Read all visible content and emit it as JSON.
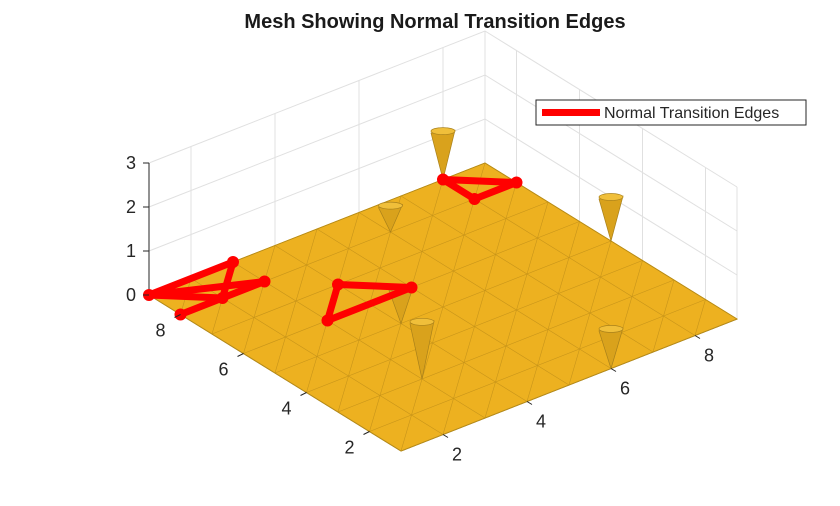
{
  "chart_data": {
    "type": "surface",
    "title": "Mesh Showing Normal Transition Edges",
    "xlabel": "",
    "ylabel": "",
    "zlabel": "",
    "xlim": [
      1,
      9
    ],
    "ylim": [
      1,
      9
    ],
    "zlim": [
      0,
      3
    ],
    "x_ticks": [
      2,
      4,
      6,
      8
    ],
    "y_ticks": [
      2,
      4,
      6,
      8
    ],
    "z_ticks": [
      0,
      1,
      2,
      3
    ],
    "grid": true,
    "legend_position": "top-right",
    "surface_color": "#EDB120",
    "mesh_edge_color": "#c8951a",
    "spikes": [
      {
        "x": 3,
        "y": 3,
        "z": 1.3
      },
      {
        "x": 4,
        "y": 5,
        "z": 0.8
      },
      {
        "x": 8,
        "y": 9,
        "z": 1.1
      },
      {
        "x": 6,
        "y": 8,
        "z": 0.6
      },
      {
        "x": 9,
        "y": 5,
        "z": 1.0
      },
      {
        "x": 6,
        "y": 1,
        "z": 0.9
      }
    ],
    "series": [
      {
        "name": "Normal Transition Edges",
        "color": "#ff0000",
        "segments": [
          [
            [
              1,
              8
            ],
            [
              2,
              8
            ]
          ],
          [
            [
              2,
              8
            ],
            [
              1,
              9
            ]
          ],
          [
            [
              1,
              9
            ],
            [
              3,
              8
            ]
          ],
          [
            [
              3,
              8
            ],
            [
              2,
              8
            ]
          ],
          [
            [
              2,
              8
            ],
            [
              3,
              9
            ]
          ],
          [
            [
              1,
              9
            ],
            [
              3,
              9
            ]
          ],
          [
            [
              3,
              6
            ],
            [
              4,
              7
            ]
          ],
          [
            [
              4,
              7
            ],
            [
              5,
              6
            ]
          ],
          [
            [
              5,
              6
            ],
            [
              3,
              6
            ]
          ],
          [
            [
              8,
              8
            ],
            [
              8,
              9
            ]
          ],
          [
            [
              8,
              9
            ],
            [
              9,
              8
            ]
          ],
          [
            [
              9,
              8
            ],
            [
              8,
              8
            ]
          ]
        ]
      }
    ]
  }
}
